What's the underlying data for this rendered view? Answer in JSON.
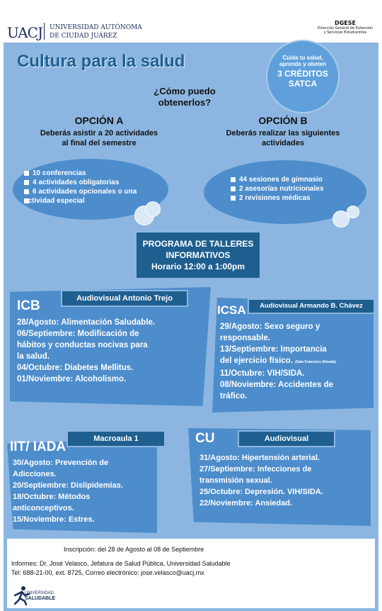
{
  "header": {
    "logo_mark": "UACJ",
    "university_line1": "UNIVERSIDAD AUTÓNOMA",
    "university_line2": "DE CIUDAD JUÁREZ",
    "dept_code": "DGESE",
    "dept_name_line1": "Dirección General de Extensión",
    "dept_name_line2": "y Servicios Estudiantiles"
  },
  "title": "Cultura para la salud",
  "credits": {
    "line1": "Cuida tu salud,",
    "line2": "aprende y obeten",
    "line3": "3 CRÉDITOS",
    "line4": "SATCA"
  },
  "question": {
    "line1": "¿Cómo puedo",
    "line2": "obtenerlos?"
  },
  "option_a": {
    "title": "OPCIÓN A",
    "sub1": "Deberás asistir a 20 actividades",
    "sub2": "al final del semestre",
    "items": [
      "10 conferencias",
      "4 actividades obligatorias",
      "6 actividades opcionales o una",
      "actividad especial"
    ]
  },
  "option_b": {
    "title": "OPCIÓN B",
    "sub1": "Deberás realizar las siguientes",
    "sub2": "actividades",
    "items": [
      "44 sesiones de gimnasio",
      "2 asesorías nutricionales",
      "2 revisiones médicas"
    ]
  },
  "program": {
    "line1": "PROGRAMA DE TALLERES",
    "line2": "INFORMATIVOS",
    "line3": "Horario 12:00 a 1:00pm"
  },
  "icb": {
    "code": "ICB",
    "venue": "Audiovisual Antonio Trejo",
    "lines": [
      "28/Agosto: Alimentación Saludable.",
      "06/Septiembre: Modificación de",
      "hábitos y conductas nocivas para",
      "la salud.",
      "04/Octubre: Diabetes Mellitus.",
      "01/Noviembre: Alcoholismo."
    ]
  },
  "icsa": {
    "code": "ICSA",
    "venue": "Audiovisual Armando B. Chávez",
    "lines": [
      "29/Agosto: Sexo seguro y",
      "responsable.",
      "13/Septiembre: Importancia",
      "del ejercicio físico.",
      "11/Octubre: VIH/SIDA.",
      "08/Noviembre: Accidentes de",
      "tráfico."
    ],
    "note": "(Sala Francisco Almada)"
  },
  "iit": {
    "code": "IIT/ IADA",
    "venue": "Macroaula 1",
    "lines": [
      "30/Agosto: Prevención de",
      "Adicciones.",
      "20/Septiembre: Dislipidemias.",
      "18/Octubre: Métodos",
      "anticonceptivos.",
      "15/Noviembre: Estres."
    ]
  },
  "cu": {
    "code": "CU",
    "venue": "Audiovisual",
    "lines": [
      "31/Agosto: Hipertensión arterial.",
      "27/Septiembre: Infecciones de",
      "transmisión sexual.",
      "25/Octubre: Depresión.  VIH/SIDA.",
      "22/Noviembre: Ansiedad."
    ]
  },
  "footer": {
    "inscripcion": "Inscripción: del 28 de Agosto al 08 de Septiembre",
    "informes": "Informes: Dr. José Velasco, Jefatura de Salud Pública, Universidad Saludable",
    "contacto": "Tel: 688-21-00, ext. 8725, Correo electrónico: jose.velasco@uacj.mx",
    "logo_line1": "UNIVERSIDAD",
    "logo_line2": "SALUDABLE"
  },
  "colors": {
    "background": "#8cb6e1",
    "panel": "#4d8dcc",
    "dark_label": "#1e5f8f",
    "title": "#1e5f90"
  }
}
